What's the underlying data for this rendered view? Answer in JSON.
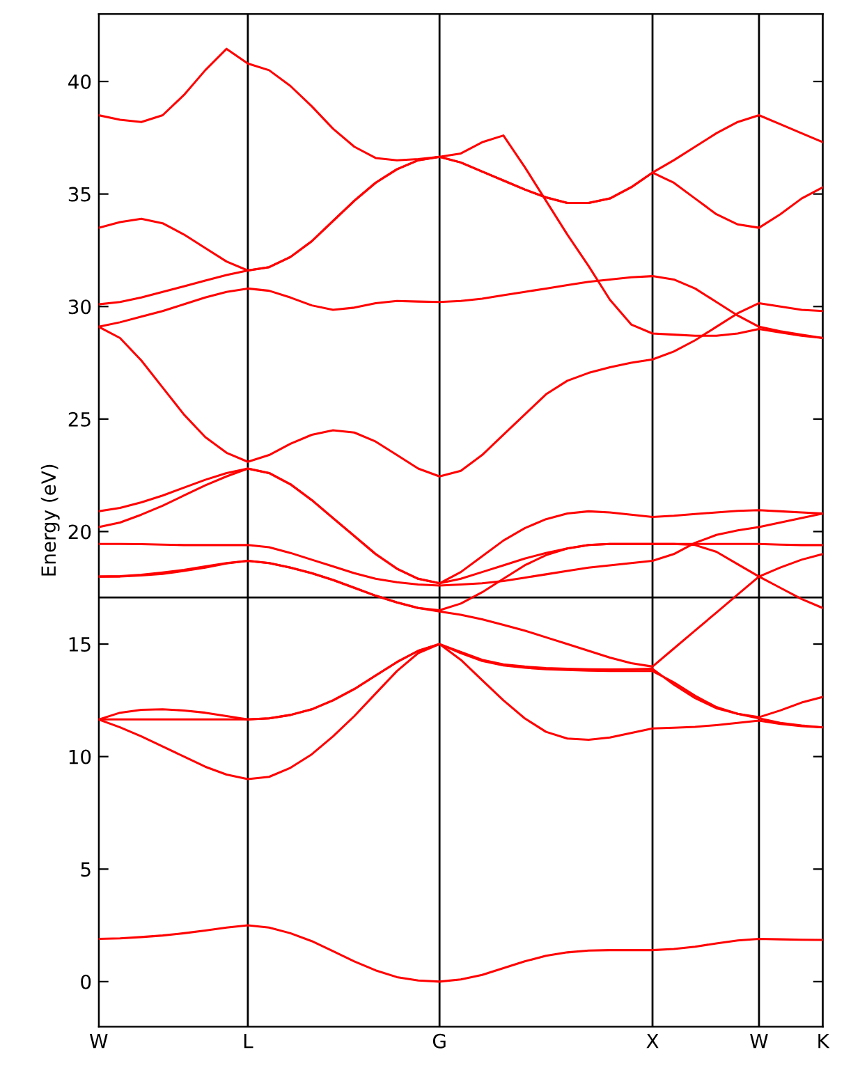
{
  "chart_data": {
    "type": "line",
    "ylabel": "Energy (eV)",
    "categories": [
      "W",
      null,
      null,
      null,
      null,
      null,
      null,
      "L",
      null,
      null,
      null,
      null,
      null,
      null,
      null,
      null,
      "G",
      null,
      null,
      null,
      null,
      null,
      null,
      null,
      null,
      null,
      "X",
      null,
      null,
      null,
      null,
      "W",
      null,
      null,
      "K"
    ],
    "ylim": [
      -2,
      43
    ],
    "yticks": [
      0,
      5,
      10,
      15,
      20,
      25,
      30,
      35,
      40
    ],
    "grid": "x",
    "line_style": "solid",
    "ref_lines": [
      {
        "axis": "y",
        "value": 17.07,
        "color": "#000000"
      }
    ],
    "series": [
      {
        "color": "#ff0000",
        "values": [
          1.9,
          1.92,
          1.98,
          2.05,
          2.15,
          2.27,
          2.4,
          2.5,
          2.4,
          2.15,
          1.8,
          1.35,
          0.9,
          0.5,
          0.2,
          0.05,
          0.0,
          0.1,
          0.3,
          0.6,
          0.9,
          1.15,
          1.3,
          1.38,
          1.4,
          1.4,
          1.4,
          1.45,
          1.55,
          1.7,
          1.83,
          1.9,
          1.88,
          1.86,
          1.85
        ]
      },
      {
        "color": "#ff0000",
        "values": [
          11.65,
          11.3,
          10.9,
          10.45,
          10.0,
          9.55,
          9.2,
          9.0,
          9.1,
          9.5,
          10.1,
          10.9,
          11.8,
          12.8,
          13.8,
          14.6,
          15.0,
          14.3,
          13.4,
          12.5,
          11.7,
          11.1,
          10.8,
          10.75,
          10.85,
          11.05,
          11.25,
          11.28,
          11.32,
          11.4,
          11.5,
          11.6,
          11.45,
          11.35,
          11.3
        ]
      },
      {
        "color": "#ff0000",
        "values": [
          11.65,
          11.65,
          11.65,
          11.65,
          11.65,
          11.65,
          11.65,
          11.65,
          11.7,
          11.85,
          12.1,
          12.5,
          13.0,
          13.6,
          14.2,
          14.7,
          15.0,
          14.6,
          14.25,
          14.05,
          13.95,
          13.88,
          13.85,
          13.82,
          13.8,
          13.8,
          13.8,
          13.3,
          12.7,
          12.2,
          11.9,
          11.7,
          11.5,
          11.38,
          11.3
        ]
      },
      {
        "color": "#ff0000",
        "values": [
          11.65,
          11.95,
          12.08,
          12.1,
          12.05,
          11.95,
          11.8,
          11.65,
          11.7,
          11.85,
          12.1,
          12.5,
          13.0,
          13.6,
          14.2,
          14.7,
          15.0,
          14.65,
          14.3,
          14.1,
          14.0,
          13.93,
          13.9,
          13.88,
          13.87,
          13.88,
          13.9,
          13.2,
          12.6,
          12.15,
          11.9,
          11.75,
          12.05,
          12.4,
          12.65
        ]
      },
      {
        "color": "#ff0000",
        "values": [
          18.0,
          18.02,
          18.08,
          18.18,
          18.3,
          18.45,
          18.6,
          18.7,
          18.6,
          18.4,
          18.15,
          17.85,
          17.5,
          17.15,
          16.85,
          16.6,
          16.45,
          16.3,
          16.1,
          15.85,
          15.6,
          15.3,
          15.0,
          14.7,
          14.4,
          14.15,
          14.0,
          14.8,
          15.6,
          16.4,
          17.2,
          18.0,
          17.5,
          17.0,
          16.6
        ]
      },
      {
        "color": "#ff0000",
        "values": [
          18.0,
          18.0,
          18.05,
          18.12,
          18.25,
          18.4,
          18.58,
          18.7,
          18.6,
          18.4,
          18.15,
          17.85,
          17.5,
          17.15,
          16.85,
          16.6,
          16.5,
          16.8,
          17.3,
          17.9,
          18.5,
          18.95,
          19.25,
          19.4,
          19.45,
          19.45,
          19.45,
          19.45,
          19.4,
          19.1,
          18.55,
          18.0,
          18.4,
          18.75,
          19.0
        ]
      },
      {
        "color": "#ff0000",
        "values": [
          19.45,
          19.45,
          19.44,
          19.42,
          19.4,
          19.4,
          19.4,
          19.4,
          19.3,
          19.05,
          18.75,
          18.45,
          18.15,
          17.9,
          17.75,
          17.65,
          17.6,
          17.65,
          17.7,
          17.8,
          17.95,
          18.1,
          18.25,
          18.4,
          18.5,
          18.6,
          18.7,
          19.0,
          19.5,
          19.85,
          20.05,
          20.2,
          20.4,
          20.6,
          20.8
        ]
      },
      {
        "color": "#ff0000",
        "values": [
          20.2,
          20.4,
          20.75,
          21.15,
          21.6,
          22.05,
          22.45,
          22.8,
          22.6,
          22.1,
          21.4,
          20.6,
          19.8,
          19.0,
          18.35,
          17.9,
          17.7,
          18.2,
          18.9,
          19.6,
          20.15,
          20.55,
          20.8,
          20.9,
          20.85,
          20.75,
          20.65,
          20.7,
          20.78,
          20.85,
          20.92,
          20.95,
          20.9,
          20.85,
          20.8
        ]
      },
      {
        "color": "#ff0000",
        "values": [
          20.9,
          21.05,
          21.3,
          21.6,
          21.95,
          22.3,
          22.6,
          22.8,
          22.6,
          22.1,
          21.4,
          20.6,
          19.8,
          19.0,
          18.35,
          17.9,
          17.7,
          17.9,
          18.2,
          18.5,
          18.8,
          19.05,
          19.25,
          19.4,
          19.45,
          19.45,
          19.45,
          19.45,
          19.45,
          19.45,
          19.45,
          19.45,
          19.42,
          19.4,
          19.4
        ]
      },
      {
        "color": "#ff0000",
        "values": [
          29.1,
          28.6,
          27.6,
          26.4,
          25.2,
          24.2,
          23.5,
          23.1,
          23.4,
          23.9,
          24.3,
          24.5,
          24.4,
          24.0,
          23.4,
          22.8,
          22.45,
          22.7,
          23.4,
          24.3,
          25.2,
          26.1,
          26.7,
          27.05,
          27.3,
          27.5,
          27.65,
          28.0,
          28.5,
          29.1,
          29.7,
          30.15,
          30.0,
          29.85,
          29.8
        ]
      },
      {
        "color": "#ff0000",
        "values": [
          29.1,
          29.3,
          29.55,
          29.8,
          30.1,
          30.4,
          30.65,
          30.8,
          30.7,
          30.4,
          30.05,
          29.85,
          29.95,
          30.15,
          30.25,
          30.22,
          30.2,
          30.25,
          30.35,
          30.5,
          30.65,
          30.8,
          30.95,
          31.1,
          31.2,
          31.3,
          31.35,
          31.2,
          30.8,
          30.2,
          29.6,
          29.1,
          28.9,
          28.75,
          28.6
        ]
      },
      {
        "color": "#ff0000",
        "values": [
          30.1,
          30.2,
          30.4,
          30.65,
          30.9,
          31.15,
          31.4,
          31.6,
          31.75,
          32.2,
          32.9,
          33.8,
          34.7,
          35.5,
          36.1,
          36.5,
          36.65,
          36.8,
          37.3,
          37.6,
          36.2,
          34.7,
          33.2,
          31.8,
          30.3,
          29.2,
          28.8,
          28.75,
          28.7,
          28.7,
          28.8,
          29.0,
          28.85,
          28.7,
          28.6
        ]
      },
      {
        "color": "#ff0000",
        "values": [
          33.5,
          33.75,
          33.9,
          33.7,
          33.2,
          32.6,
          32.0,
          31.6,
          31.75,
          32.2,
          32.9,
          33.8,
          34.7,
          35.5,
          36.1,
          36.5,
          36.65,
          36.4,
          36.0,
          35.6,
          35.2,
          34.85,
          34.6,
          34.6,
          34.8,
          35.3,
          35.95,
          35.5,
          34.8,
          34.1,
          33.65,
          33.5,
          34.1,
          34.8,
          35.3
        ]
      },
      {
        "color": "#ff0000",
        "values": [
          38.5,
          38.3,
          38.2,
          38.5,
          39.4,
          40.5,
          41.45,
          40.8,
          40.5,
          39.8,
          38.9,
          37.9,
          37.1,
          36.6,
          36.5,
          36.55,
          36.65,
          36.4,
          36.0,
          35.6,
          35.2,
          34.85,
          34.6,
          34.6,
          34.8,
          35.3,
          35.95,
          36.5,
          37.1,
          37.7,
          38.2,
          38.5,
          38.1,
          37.7,
          37.3
        ]
      }
    ]
  }
}
